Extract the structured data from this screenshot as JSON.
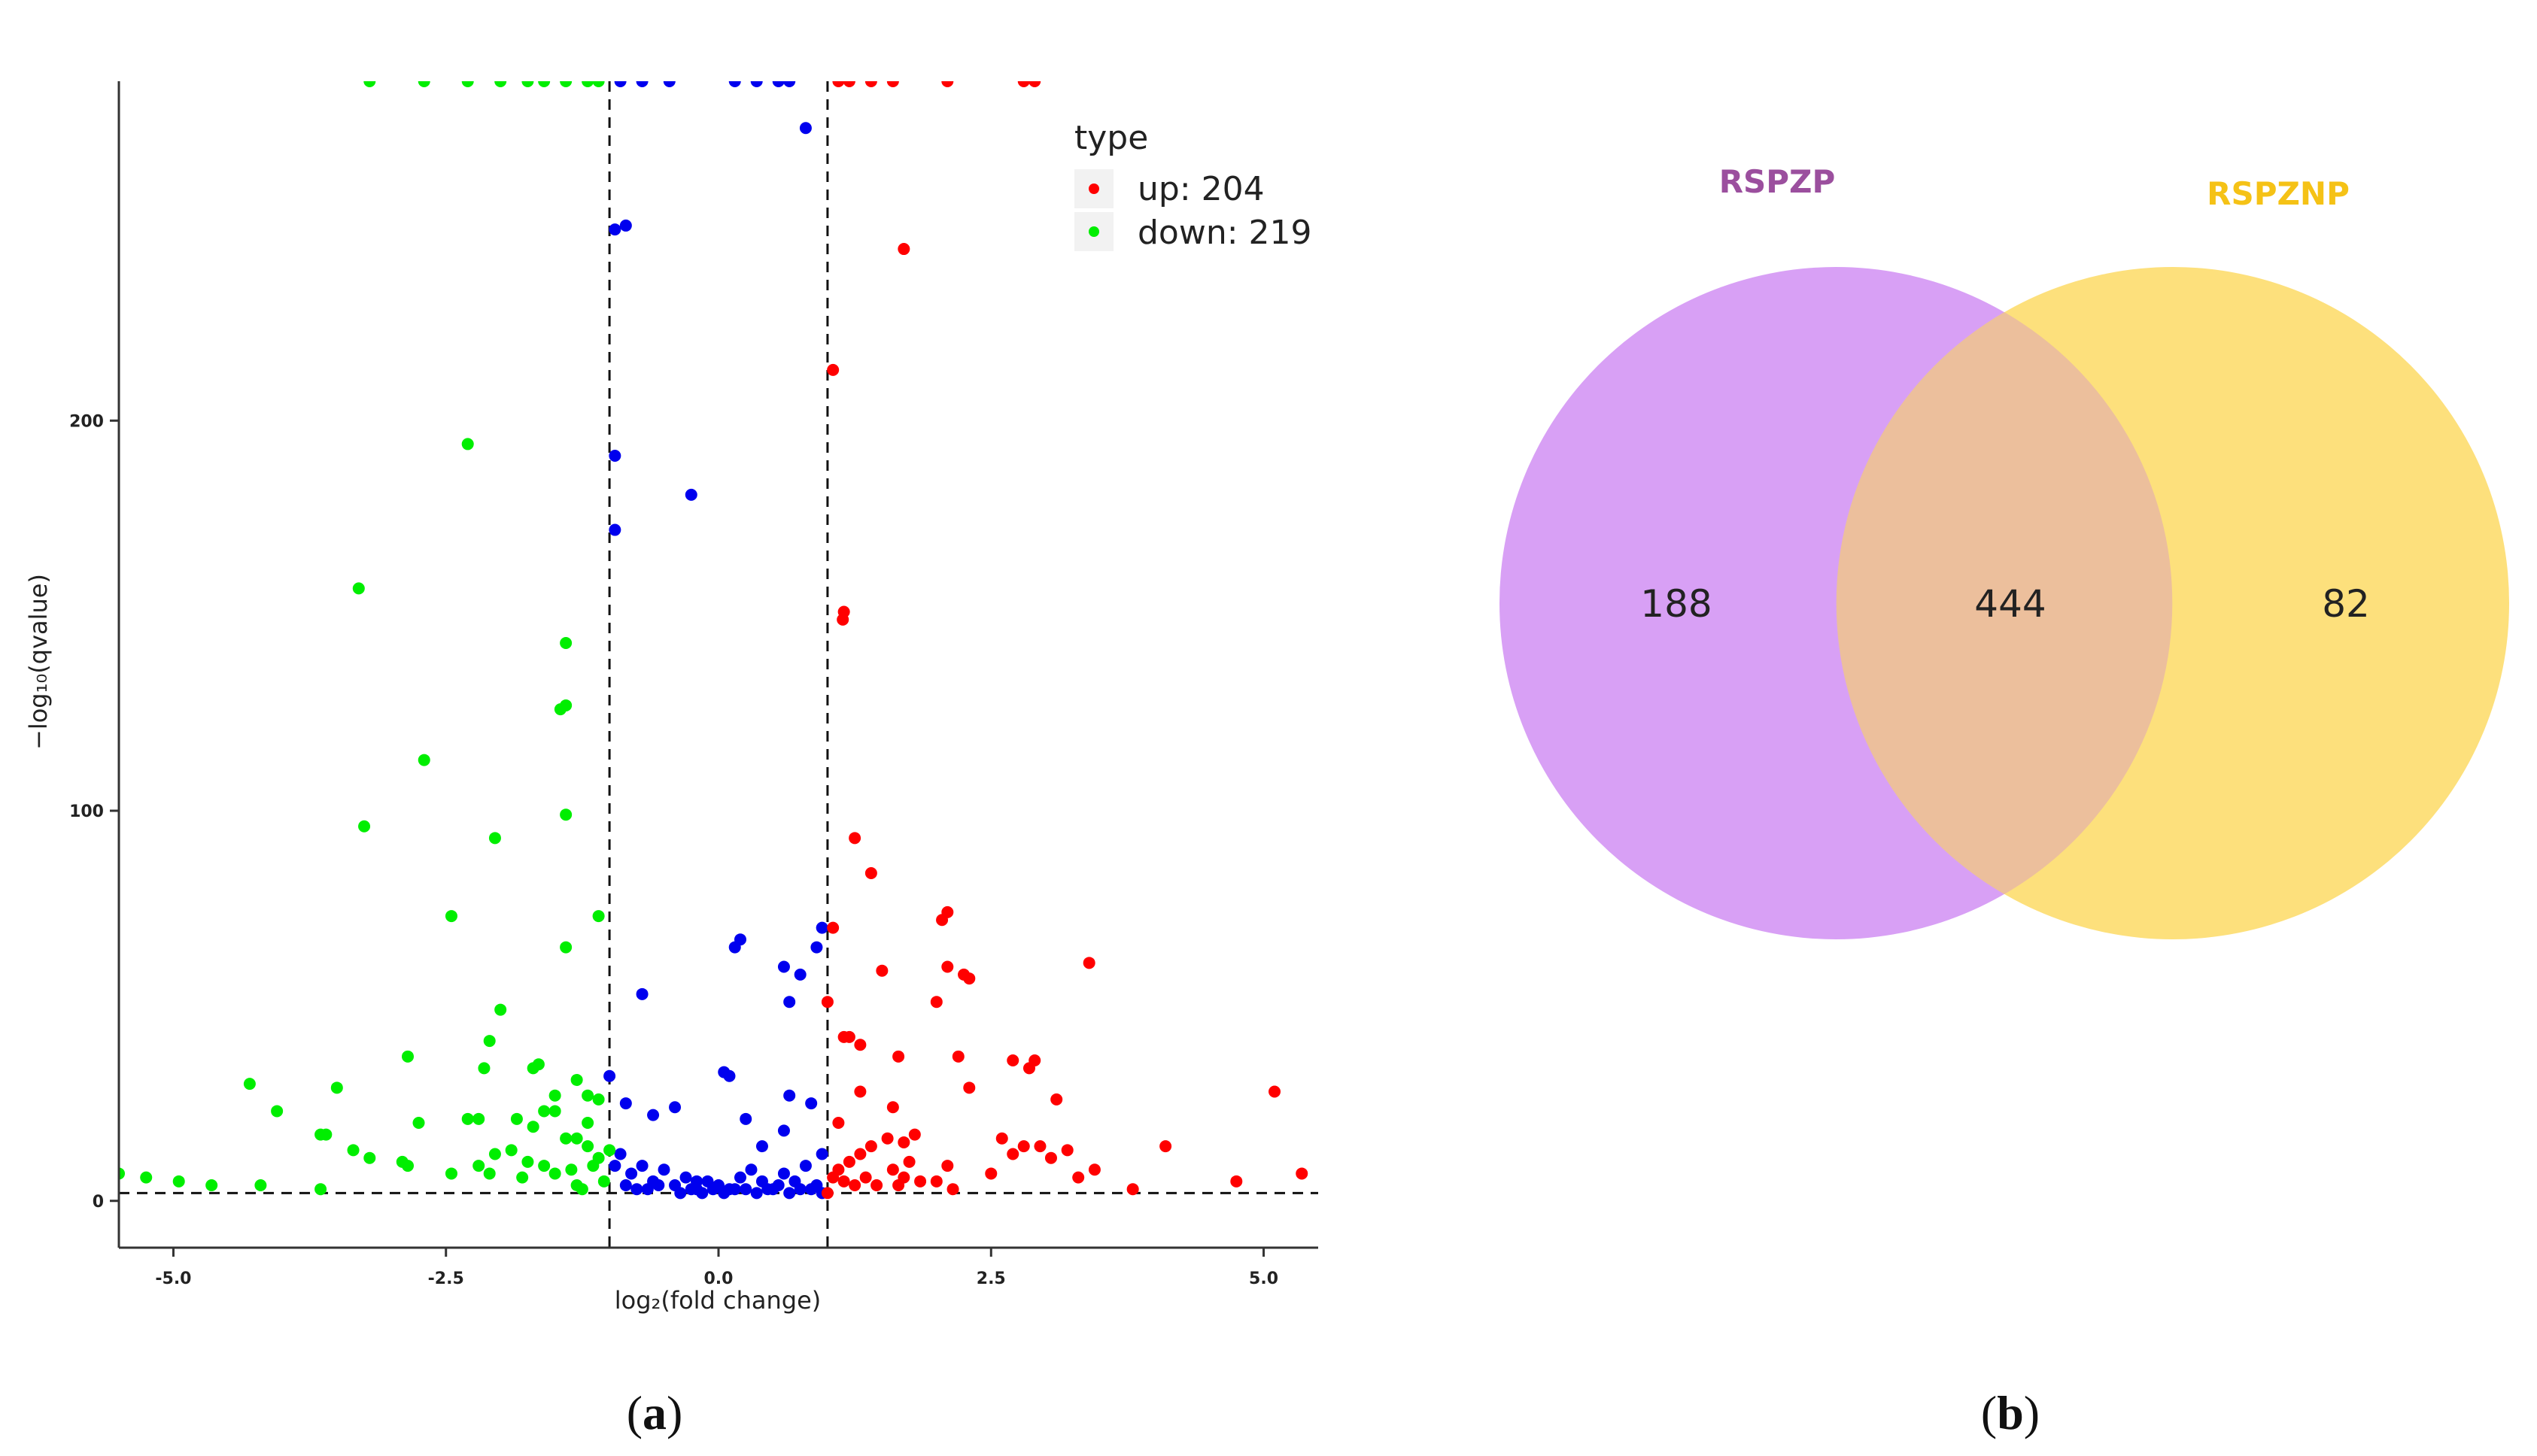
{
  "colors": {
    "up": "#ff0000",
    "down": "#00ee00",
    "nonsig": "#0000ee",
    "venn_a_fill": "#d8a0f5",
    "venn_b_fill": "#fde07c",
    "venn_a_label": "#9b4f9e",
    "venn_b_label": "#f5c216"
  },
  "chart_data": [
    {
      "type": "scatter",
      "panel_label": "a",
      "xlabel": "log₂(fold change)",
      "ylabel": "−log₁₀(qvalue)",
      "xlim": [
        -5.5,
        5.5
      ],
      "ylim": [
        -12,
        287
      ],
      "x_ticks": [
        -5.0,
        -2.5,
        0.0,
        2.5,
        5.0
      ],
      "x_tick_labels": [
        "-5.0",
        "-2.5",
        "0.0",
        "2.5",
        "5.0"
      ],
      "y_ticks": [
        0,
        100,
        200
      ],
      "y_tick_labels": [
        "0",
        "100",
        "200"
      ],
      "threshold_lines": {
        "vertical": [
          -1,
          1
        ],
        "horizontal": 2
      },
      "grid": false,
      "legend": {
        "title": "type",
        "placement": "top-right",
        "entries": [
          {
            "key": "up",
            "label": "up: 204"
          },
          {
            "key": "down",
            "label": "down: 219"
          }
        ]
      },
      "series": [
        {
          "key": "up",
          "points": [
            [
              1.1,
              287
            ],
            [
              1.2,
              287
            ],
            [
              1.4,
              287
            ],
            [
              1.6,
              287
            ],
            [
              2.1,
              287
            ],
            [
              2.8,
              287
            ],
            [
              2.9,
              287
            ],
            [
              1.7,
              244
            ],
            [
              1.05,
              213
            ],
            [
              1.15,
              151
            ],
            [
              1.14,
              149
            ],
            [
              1.25,
              93
            ],
            [
              1.4,
              84
            ],
            [
              2.05,
              72
            ],
            [
              2.1,
              74
            ],
            [
              1.05,
              70
            ],
            [
              1.5,
              59
            ],
            [
              2.1,
              60
            ],
            [
              2.3,
              57
            ],
            [
              2.25,
              58
            ],
            [
              3.4,
              61
            ],
            [
              2.0,
              51
            ],
            [
              1.0,
              51
            ],
            [
              1.15,
              42
            ],
            [
              1.2,
              42
            ],
            [
              1.3,
              40
            ],
            [
              1.65,
              37
            ],
            [
              2.2,
              37
            ],
            [
              2.7,
              36
            ],
            [
              2.85,
              34
            ],
            [
              2.9,
              36
            ],
            [
              3.1,
              26
            ],
            [
              2.3,
              29
            ],
            [
              1.3,
              28
            ],
            [
              1.6,
              24
            ],
            [
              1.8,
              17
            ],
            [
              1.7,
              15
            ],
            [
              1.55,
              16
            ],
            [
              1.4,
              14
            ],
            [
              1.3,
              12
            ],
            [
              1.2,
              10
            ],
            [
              1.1,
              8
            ],
            [
              1.05,
              6
            ],
            [
              1.15,
              5
            ],
            [
              1.25,
              4
            ],
            [
              1.35,
              6
            ],
            [
              1.45,
              4
            ],
            [
              1.6,
              8
            ],
            [
              1.7,
              6
            ],
            [
              1.75,
              10
            ],
            [
              1.85,
              5
            ],
            [
              2.0,
              5
            ],
            [
              2.1,
              9
            ],
            [
              2.15,
              3
            ],
            [
              2.5,
              7
            ],
            [
              2.6,
              16
            ],
            [
              2.7,
              12
            ],
            [
              2.8,
              14
            ],
            [
              2.95,
              14
            ],
            [
              3.05,
              11
            ],
            [
              3.2,
              13
            ],
            [
              3.3,
              6
            ],
            [
              3.45,
              8
            ],
            [
              3.8,
              3
            ],
            [
              4.1,
              14
            ],
            [
              4.75,
              5
            ],
            [
              5.1,
              28
            ],
            [
              5.35,
              7
            ],
            [
              1.1,
              20
            ],
            [
              1.0,
              2
            ],
            [
              1.65,
              4
            ]
          ]
        },
        {
          "key": "down",
          "points": [
            [
              -3.2,
              287
            ],
            [
              -2.7,
              287
            ],
            [
              -2.3,
              287
            ],
            [
              -2.0,
              287
            ],
            [
              -1.75,
              287
            ],
            [
              -1.6,
              287
            ],
            [
              -1.4,
              287
            ],
            [
              -1.2,
              287
            ],
            [
              -1.1,
              287
            ],
            [
              -2.3,
              194
            ],
            [
              -3.3,
              157
            ],
            [
              -1.4,
              143
            ],
            [
              -1.45,
              126
            ],
            [
              -1.4,
              127
            ],
            [
              -2.7,
              113
            ],
            [
              -1.4,
              99
            ],
            [
              -3.25,
              96
            ],
            [
              -2.05,
              93
            ],
            [
              -2.45,
              73
            ],
            [
              -1.1,
              73
            ],
            [
              -1.4,
              65
            ],
            [
              -2.0,
              49
            ],
            [
              -2.1,
              41
            ],
            [
              -2.85,
              37
            ],
            [
              -2.15,
              34
            ],
            [
              -1.7,
              34
            ],
            [
              -1.65,
              35
            ],
            [
              -4.3,
              30
            ],
            [
              -3.5,
              29
            ],
            [
              -1.5,
              27
            ],
            [
              -1.2,
              27
            ],
            [
              -1.3,
              31
            ],
            [
              -1.1,
              26
            ],
            [
              -4.05,
              23
            ],
            [
              -2.75,
              20
            ],
            [
              -2.3,
              21
            ],
            [
              -2.2,
              21
            ],
            [
              -1.85,
              21
            ],
            [
              -1.7,
              19
            ],
            [
              -1.6,
              23
            ],
            [
              -1.5,
              23
            ],
            [
              -1.4,
              16
            ],
            [
              -1.3,
              16
            ],
            [
              -1.2,
              14
            ],
            [
              -1.15,
              9
            ],
            [
              -1.35,
              8
            ],
            [
              -1.5,
              7
            ],
            [
              -1.6,
              9
            ],
            [
              -1.75,
              10
            ],
            [
              -1.9,
              13
            ],
            [
              -2.05,
              12
            ],
            [
              -2.2,
              9
            ],
            [
              -3.65,
              17
            ],
            [
              -3.6,
              17
            ],
            [
              -3.35,
              13
            ],
            [
              -3.2,
              11
            ],
            [
              -2.9,
              10
            ],
            [
              -2.85,
              9
            ],
            [
              -2.45,
              7
            ],
            [
              -2.1,
              7
            ],
            [
              -1.8,
              6
            ],
            [
              -5.5,
              7
            ],
            [
              -5.25,
              6
            ],
            [
              -4.95,
              5
            ],
            [
              -4.65,
              4
            ],
            [
              -4.2,
              4
            ],
            [
              -3.65,
              3
            ],
            [
              -1.3,
              4
            ],
            [
              -1.05,
              5
            ],
            [
              -1.25,
              3
            ],
            [
              -1.1,
              11
            ],
            [
              -1.2,
              20
            ],
            [
              -1.0,
              13
            ]
          ]
        },
        {
          "key": "nonsig",
          "points": [
            [
              -0.9,
              287
            ],
            [
              -0.7,
              287
            ],
            [
              -0.45,
              287
            ],
            [
              0.15,
              287
            ],
            [
              0.35,
              287
            ],
            [
              0.55,
              287
            ],
            [
              0.65,
              287
            ],
            [
              0.8,
              275
            ],
            [
              -0.95,
              249
            ],
            [
              -0.85,
              250
            ],
            [
              -0.95,
              191
            ],
            [
              -0.25,
              181
            ],
            [
              -0.95,
              172
            ],
            [
              0.2,
              67
            ],
            [
              0.15,
              65
            ],
            [
              0.6,
              60
            ],
            [
              0.9,
              65
            ],
            [
              0.95,
              70
            ],
            [
              0.75,
              58
            ],
            [
              -0.7,
              53
            ],
            [
              0.65,
              51
            ],
            [
              -1.0,
              32
            ],
            [
              0.05,
              33
            ],
            [
              0.1,
              32
            ],
            [
              0.65,
              27
            ],
            [
              -0.85,
              25
            ],
            [
              -0.6,
              22
            ],
            [
              -0.4,
              24
            ],
            [
              0.25,
              21
            ],
            [
              0.85,
              25
            ],
            [
              0.6,
              18
            ],
            [
              0.95,
              12
            ],
            [
              -0.95,
              9
            ],
            [
              -0.9,
              12
            ],
            [
              -0.8,
              7
            ],
            [
              -0.7,
              9
            ],
            [
              -0.6,
              5
            ],
            [
              -0.5,
              8
            ],
            [
              -0.4,
              4
            ],
            [
              -0.3,
              6
            ],
            [
              -0.2,
              3
            ],
            [
              -0.1,
              5
            ],
            [
              0.0,
              4
            ],
            [
              0.1,
              3
            ],
            [
              0.2,
              6
            ],
            [
              0.3,
              8
            ],
            [
              0.4,
              5
            ],
            [
              0.5,
              3
            ],
            [
              0.6,
              7
            ],
            [
              0.7,
              5
            ],
            [
              0.8,
              9
            ],
            [
              0.9,
              4
            ],
            [
              -0.85,
              4
            ],
            [
              -0.75,
              3
            ],
            [
              -0.65,
              3
            ],
            [
              -0.55,
              4
            ],
            [
              -0.35,
              2
            ],
            [
              -0.25,
              3
            ],
            [
              -0.15,
              2
            ],
            [
              -0.05,
              3
            ],
            [
              0.05,
              2
            ],
            [
              0.15,
              3
            ],
            [
              0.25,
              3
            ],
            [
              0.35,
              2
            ],
            [
              0.45,
              3
            ],
            [
              0.55,
              4
            ],
            [
              0.65,
              2
            ],
            [
              0.75,
              3
            ],
            [
              0.85,
              3
            ],
            [
              0.95,
              2
            ],
            [
              0.4,
              14
            ],
            [
              -0.2,
              5
            ]
          ]
        }
      ]
    },
    {
      "type": "venn",
      "panel_label": "b",
      "sets": [
        {
          "name": "RSPZP",
          "only": "188"
        },
        {
          "name": "RSPZNP",
          "only": "82"
        }
      ],
      "intersection": "444"
    }
  ]
}
